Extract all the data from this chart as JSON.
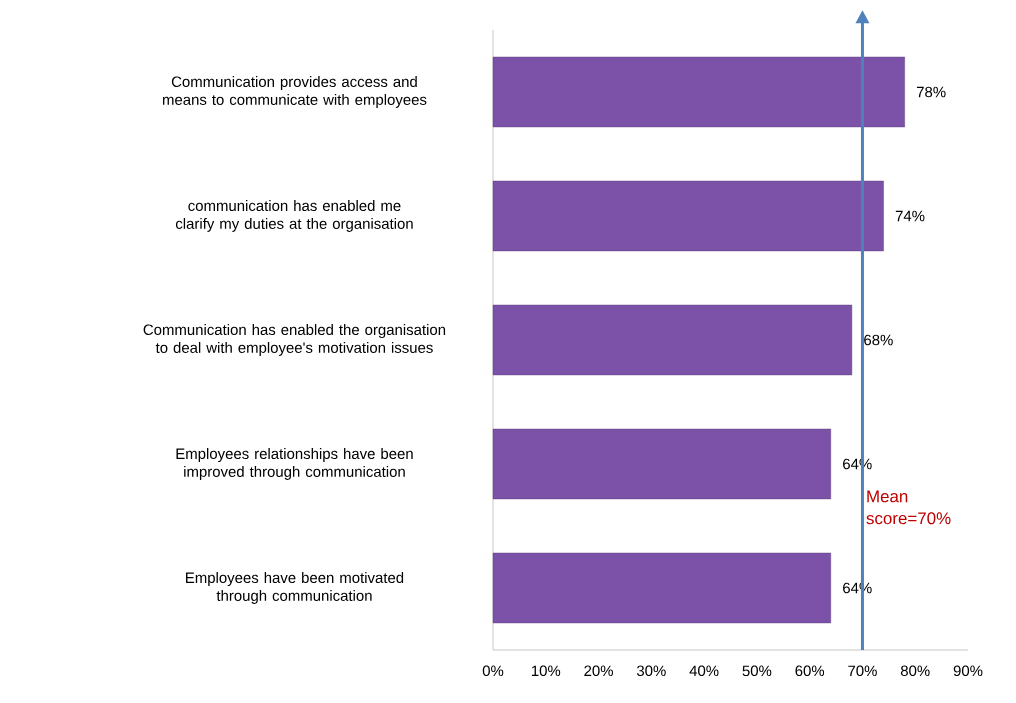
{
  "chart_data": {
    "type": "bar",
    "orientation": "horizontal",
    "categories": [
      "Communication provides access and means to communicate with employees",
      "communication has enabled me clarify my duties at the organisation",
      "Communication has enabled the organisation to deal with employee's motivation issues",
      "Employees relationships have been improved through communication",
      "Employees have been motivated through communication"
    ],
    "values": [
      78,
      74,
      68,
      64,
      64
    ],
    "value_labels": [
      "78%",
      "74%",
      "68%",
      "64%",
      "64%"
    ],
    "color": "#7b52a8",
    "xlim": [
      0,
      90
    ],
    "xticks": [
      {
        "value": 0,
        "label": "0%"
      },
      {
        "value": 10,
        "label": "10%"
      },
      {
        "value": 20,
        "label": "20%"
      },
      {
        "value": 30,
        "label": "30%"
      },
      {
        "value": 40,
        "label": "40%"
      },
      {
        "value": 50,
        "label": "50%"
      },
      {
        "value": 60,
        "label": "60%"
      },
      {
        "value": 70,
        "label": "70%"
      },
      {
        "value": 80,
        "label": "80%"
      },
      {
        "value": 90,
        "label": "90%"
      }
    ],
    "ref_lines": [
      {
        "axis": "x",
        "value": 70,
        "label": "Mean score=70%",
        "color": "#4f81bd"
      }
    ],
    "grid": false
  }
}
